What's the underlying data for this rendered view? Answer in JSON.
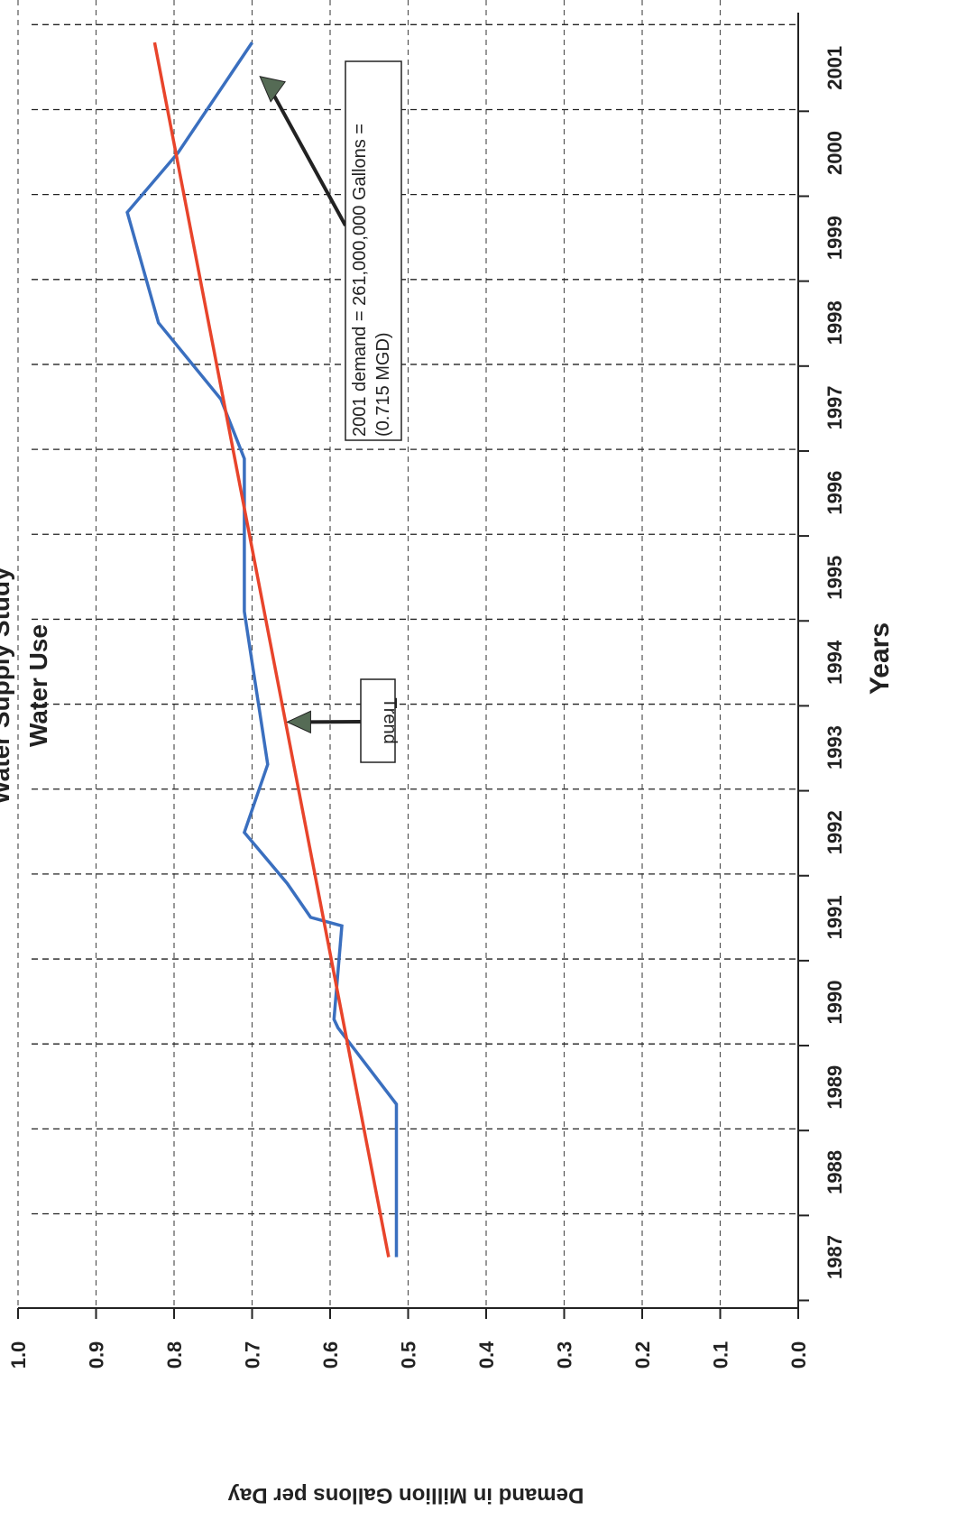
{
  "chart_data": {
    "type": "line",
    "title_lines": [
      "Water Supply Study",
      "Water Use"
    ],
    "xlabel": "Years",
    "ylabel": "Demand in Million Gallons per Day",
    "x": [
      1987,
      1988,
      1989,
      1990,
      1991,
      1992,
      1993,
      1994,
      1995,
      1996,
      1997,
      1998,
      1999,
      2000,
      2001
    ],
    "x_tick_labels": [
      "1987",
      "1988",
      "1989",
      "1990",
      "1991",
      "1992",
      "1993",
      "1994",
      "1995",
      "1996",
      "1997",
      "1998",
      "1999",
      "2000",
      "2001"
    ],
    "y_ticks": [
      0.0,
      0.1,
      0.2,
      0.3,
      0.4,
      0.5,
      0.6,
      0.7,
      0.8,
      0.9,
      1.0
    ],
    "y_tick_labels": [
      "0.0",
      "0.1",
      "0.2",
      "0.3",
      "0.4",
      "0.5",
      "0.6",
      "0.7",
      "0.8",
      "0.9",
      "1.0"
    ],
    "xlim": [
      1986.4,
      2001.8
    ],
    "ylim": [
      0,
      1.0
    ],
    "grid": true,
    "series": [
      {
        "color": "#3a6fbf",
        "points": [
          [
            1987,
            0.515
          ],
          [
            1988,
            0.515
          ],
          [
            1988.8,
            0.515
          ],
          [
            1989.7,
            0.59
          ],
          [
            1989.8,
            0.595
          ],
          [
            1990.9,
            0.585
          ],
          [
            1991.0,
            0.625
          ],
          [
            1991.4,
            0.655
          ],
          [
            1992.0,
            0.71
          ],
          [
            1992.8,
            0.68
          ],
          [
            1993.4,
            0.69
          ],
          [
            1994.0,
            0.7
          ],
          [
            1994.6,
            0.71
          ],
          [
            1995.6,
            0.71
          ],
          [
            1996.4,
            0.71
          ],
          [
            1997.1,
            0.74
          ],
          [
            1998.0,
            0.82
          ],
          [
            1999.3,
            0.86
          ],
          [
            2000.0,
            0.795
          ],
          [
            2001.3,
            0.7
          ]
        ]
      },
      {
        "color": "#e8442b",
        "points": [
          [
            1987,
            0.525
          ],
          [
            2001.3,
            0.825
          ]
        ]
      }
    ],
    "annotations": [
      {
        "name": "trend-callout",
        "lines": [
          "Trend"
        ],
        "points_to": [
          1993.3,
          0.655
        ]
      },
      {
        "name": "demand-2001-callout",
        "lines": [
          "2001 demand = 261,000,000 Gallons =",
          "(0.715 MGD)"
        ],
        "points_to": [
          2000.9,
          0.69
        ]
      }
    ]
  }
}
